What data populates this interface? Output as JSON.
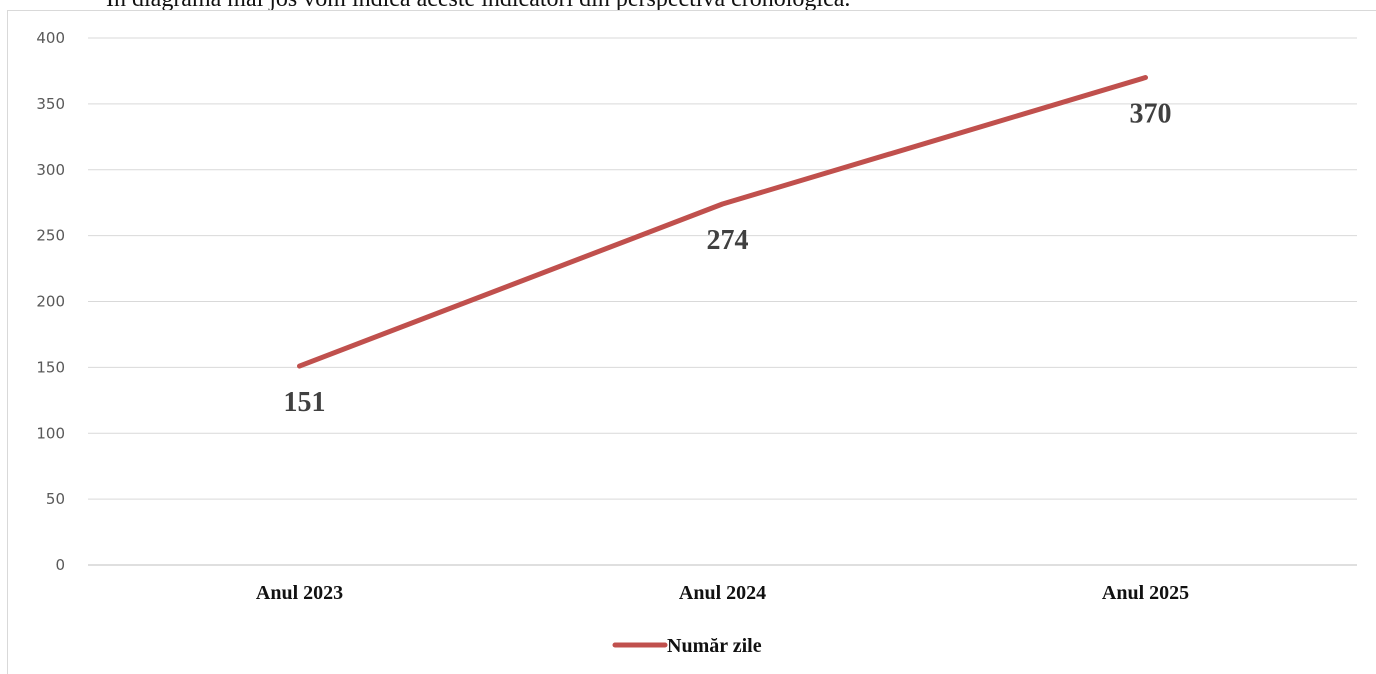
{
  "intro_text": "În diagrama mai jos vom indica aceste indicatori din perspectiva cronologică.",
  "chart_data": {
    "type": "line",
    "categories": [
      "Anul 2023",
      "Anul 2024",
      "Anul 2025"
    ],
    "series": [
      {
        "name": "Număr zile",
        "values": [
          151,
          274,
          370
        ],
        "color": "#c0504d"
      }
    ],
    "data_labels": [
      "151",
      "274",
      "370"
    ],
    "yticks": [
      "0",
      "50",
      "100",
      "150",
      "200",
      "250",
      "300",
      "350",
      "400"
    ],
    "ylim": [
      0,
      400
    ],
    "grid": true,
    "legend_position": "bottom"
  }
}
